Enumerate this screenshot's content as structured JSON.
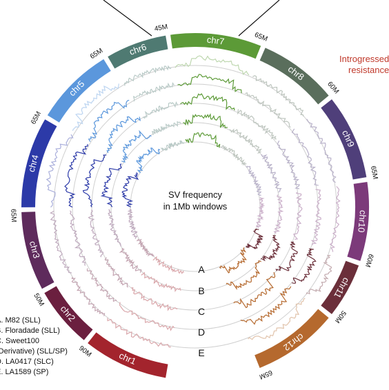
{
  "center_title_line1": "SV frequency",
  "center_title_line2": "in 1Mb windows",
  "note_line1": "Introgressed",
  "note_line2": "resistance",
  "chromosomes": [
    {
      "name": "chr1",
      "color": "#a3242d",
      "size": 90,
      "tick": "90M"
    },
    {
      "name": "chr2",
      "color": "#6b1f3f",
      "size": 50,
      "tick": "50M"
    },
    {
      "name": "chr3",
      "color": "#5e2b5c",
      "size": 65,
      "tick": "65M"
    },
    {
      "name": "chr4",
      "color": "#2c3aa8",
      "size": 65,
      "tick": "65M"
    },
    {
      "name": "chr5",
      "color": "#5b97dc",
      "size": 65,
      "tick": "65M"
    },
    {
      "name": "chr6",
      "color": "#4f7a72",
      "size": 45,
      "tick": "45M"
    },
    {
      "name": "chr7",
      "color": "#5c9a37",
      "size": 65,
      "tick": "65M"
    },
    {
      "name": "chr8",
      "color": "#5a6e5c",
      "size": 60,
      "tick": "60M"
    },
    {
      "name": "chr9",
      "color": "#4f3f7a",
      "size": 65,
      "tick": "65M"
    },
    {
      "name": "chr10",
      "color": "#7c3a7a",
      "size": 60,
      "tick": "60M"
    },
    {
      "name": "chr11",
      "color": "#6b2f3a",
      "size": 50,
      "tick": "50M"
    },
    {
      "name": "chr12",
      "color": "#b5692e",
      "size": 65,
      "tick": "65M"
    }
  ],
  "rings": [
    "A",
    "B",
    "C",
    "D",
    "E"
  ],
  "legend": [
    "A. M82 (SLL)",
    "B. Floradade (SLL)",
    "C. Sweet100",
    "(Derivative) (SLL/SP)",
    "D. LA0417 (SLC)",
    "E. LA1589 (SP)"
  ]
}
